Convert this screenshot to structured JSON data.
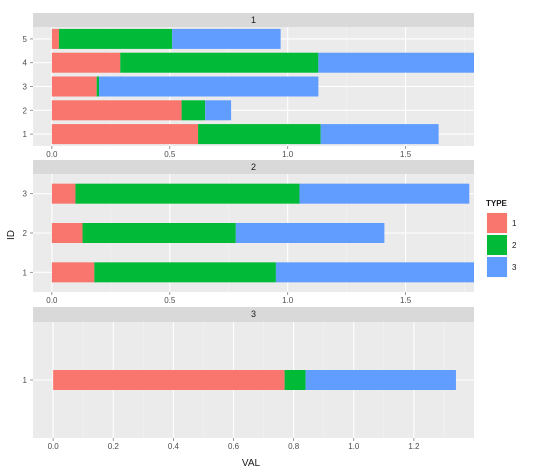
{
  "chart_data": {
    "type": "bar",
    "orientation": "horizontal",
    "stacked": true,
    "xlabel": "VAL",
    "ylabel": "ID",
    "legend": {
      "title": "TYPE",
      "position": "right",
      "entries": [
        {
          "label": "1",
          "color": "#F8766D"
        },
        {
          "label": "2",
          "color": "#00BA38"
        },
        {
          "label": "3",
          "color": "#619CFF"
        }
      ]
    },
    "panels": [
      {
        "strip": "1",
        "xlim": [
          -0.08,
          1.79
        ],
        "xticks": [
          0.0,
          0.5,
          1.0,
          1.5
        ],
        "xtick_labels": [
          "0.0",
          "0.5",
          "1.0",
          "1.5"
        ],
        "categories": [
          "1",
          "2",
          "3",
          "4",
          "5"
        ],
        "series": [
          {
            "name": "1",
            "values": [
              0.62,
              0.55,
              0.19,
              0.29,
              0.03
            ]
          },
          {
            "name": "2",
            "values": [
              0.52,
              0.1,
              0.01,
              0.84,
              0.48
            ]
          },
          {
            "name": "3",
            "values": [
              0.5,
              0.11,
              0.93,
              0.66,
              0.46
            ]
          }
        ]
      },
      {
        "strip": "2",
        "xlim": [
          -0.08,
          1.79
        ],
        "xticks": [
          0.0,
          0.5,
          1.0,
          1.5
        ],
        "xtick_labels": [
          "0.0",
          "0.5",
          "1.0",
          "1.5"
        ],
        "categories": [
          "1",
          "2",
          "3"
        ],
        "series": [
          {
            "name": "1",
            "values": [
              0.18,
              0.13,
              0.1
            ]
          },
          {
            "name": "2",
            "values": [
              0.77,
              0.65,
              0.95
            ]
          },
          {
            "name": "3",
            "values": [
              0.84,
              0.63,
              0.72
            ]
          }
        ]
      },
      {
        "strip": "3",
        "xlim": [
          -0.067,
          1.4
        ],
        "xticks": [
          0.0,
          0.2,
          0.4,
          0.6,
          0.8,
          1.0,
          1.2
        ],
        "xtick_labels": [
          "0.0",
          "0.2",
          "0.4",
          "0.6",
          "0.8",
          "1.0",
          "1.2"
        ],
        "categories": [
          "1"
        ],
        "series": [
          {
            "name": "1",
            "values": [
              0.77
            ]
          },
          {
            "name": "2",
            "values": [
              0.07
            ]
          },
          {
            "name": "3",
            "values": [
              0.5
            ]
          }
        ]
      }
    ]
  }
}
